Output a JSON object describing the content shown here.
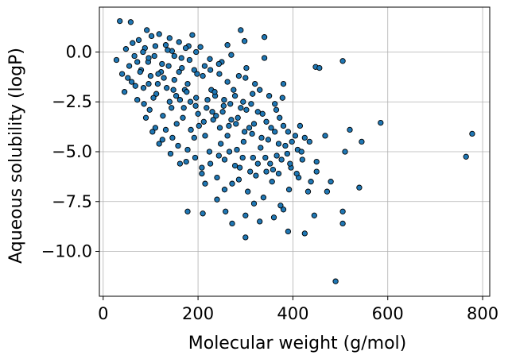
{
  "chart_data": {
    "type": "scatter",
    "title": "",
    "xlabel": "Molecular weight (g/mol)",
    "ylabel": "Aqueous solubility (logP)",
    "xlim": [
      -8,
      815
    ],
    "ylim": [
      -12.25,
      2.25
    ],
    "xticks": [
      0,
      200,
      400,
      600,
      800
    ],
    "yticks": [
      0.0,
      -2.5,
      -5.0,
      -7.5,
      -10.0
    ],
    "xtick_labels": [
      "0",
      "200",
      "400",
      "600",
      "800"
    ],
    "ytick_labels": [
      "0.0",
      "−2.5",
      "−5.0",
      "−7.5",
      "−10.0"
    ],
    "grid": true,
    "marker_color": "#1f77b4",
    "marker_edge_color": "#000000",
    "points": [
      [
        35,
        1.55
      ],
      [
        58,
        1.5
      ],
      [
        92,
        1.1
      ],
      [
        290,
        1.1
      ],
      [
        298,
        0.55
      ],
      [
        340,
        0.75
      ],
      [
        262,
        0.35
      ],
      [
        48,
        0.15
      ],
      [
        62,
        0.45
      ],
      [
        75,
        0.6
      ],
      [
        88,
        0.2
      ],
      [
        102,
        0.8
      ],
      [
        118,
        0.9
      ],
      [
        132,
        0.35
      ],
      [
        145,
        0.05
      ],
      [
        160,
        0.5
      ],
      [
        180,
        0.3
      ],
      [
        188,
        0.85
      ],
      [
        205,
        0.25
      ],
      [
        225,
        -0.35
      ],
      [
        250,
        -0.5
      ],
      [
        270,
        -0.15
      ],
      [
        340,
        -0.3
      ],
      [
        28,
        -0.4
      ],
      [
        40,
        -1.1
      ],
      [
        55,
        -0.7
      ],
      [
        66,
        -0.2
      ],
      [
        80,
        -0.9
      ],
      [
        95,
        -0.5
      ],
      [
        108,
        -0.2
      ],
      [
        122,
        -1.0
      ],
      [
        138,
        -0.7
      ],
      [
        150,
        -1.4
      ],
      [
        165,
        -0.3
      ],
      [
        178,
        -1.6
      ],
      [
        192,
        -0.9
      ],
      [
        210,
        -1.2
      ],
      [
        228,
        -1.9
      ],
      [
        245,
        -1.1
      ],
      [
        262,
        -1.5
      ],
      [
        278,
        -2.2
      ],
      [
        300,
        -1.3
      ],
      [
        312,
        -2.6
      ],
      [
        330,
        -1.9
      ],
      [
        350,
        -2.2
      ],
      [
        365,
        -2.9
      ],
      [
        380,
        -1.6
      ],
      [
        45,
        -2.0
      ],
      [
        60,
        -1.5
      ],
      [
        72,
        -2.4
      ],
      [
        85,
        -1.8
      ],
      [
        98,
        -2.9
      ],
      [
        112,
        -2.1
      ],
      [
        126,
        -3.2
      ],
      [
        140,
        -2.5
      ],
      [
        155,
        -3.6
      ],
      [
        170,
        -2.8
      ],
      [
        185,
        -3.9
      ],
      [
        200,
        -3.1
      ],
      [
        215,
        -4.2
      ],
      [
        232,
        -3.4
      ],
      [
        248,
        -4.6
      ],
      [
        265,
        -3.7
      ],
      [
        282,
        -4.9
      ],
      [
        298,
        -4.0
      ],
      [
        316,
        -5.3
      ],
      [
        334,
        -4.3
      ],
      [
        352,
        -5.6
      ],
      [
        370,
        -4.6
      ],
      [
        388,
        -5.1
      ],
      [
        405,
        -4.2
      ],
      [
        420,
        -5.4
      ],
      [
        435,
        -4.5
      ],
      [
        450,
        -6.0
      ],
      [
        110,
        -3.8
      ],
      [
        125,
        -4.4
      ],
      [
        142,
        -5.1
      ],
      [
        158,
        -4.7
      ],
      [
        175,
        -5.5
      ],
      [
        192,
        -4.3
      ],
      [
        208,
        -5.8
      ],
      [
        224,
        -5.0
      ],
      [
        240,
        -6.3
      ],
      [
        256,
        -5.4
      ],
      [
        272,
        -6.6
      ],
      [
        288,
        -5.8
      ],
      [
        305,
        -7.0
      ],
      [
        322,
        -6.2
      ],
      [
        338,
        -7.3
      ],
      [
        356,
        -6.5
      ],
      [
        374,
        -7.7
      ],
      [
        392,
        -6.9
      ],
      [
        215,
        -6.6
      ],
      [
        240,
        -7.4
      ],
      [
        258,
        -8.0
      ],
      [
        272,
        -8.6
      ],
      [
        300,
        -8.2
      ],
      [
        330,
        -8.5
      ],
      [
        360,
        -8.3
      ],
      [
        380,
        -7.9
      ],
      [
        425,
        -9.1
      ],
      [
        300,
        -9.3
      ],
      [
        178,
        -8.0
      ],
      [
        210,
        -8.1
      ],
      [
        445,
        -8.2
      ],
      [
        505,
        -8.0
      ],
      [
        505,
        -8.6
      ],
      [
        390,
        -9.0
      ],
      [
        432,
        -7.0
      ],
      [
        472,
        -7.0
      ],
      [
        480,
        -6.5
      ],
      [
        540,
        -6.8
      ],
      [
        450,
        -5.5
      ],
      [
        510,
        -5.0
      ],
      [
        520,
        -3.9
      ],
      [
        545,
        -4.5
      ],
      [
        585,
        -3.55
      ],
      [
        765,
        -5.25
      ],
      [
        778,
        -4.1
      ],
      [
        448,
        -0.75
      ],
      [
        456,
        -0.8
      ],
      [
        505,
        -0.45
      ],
      [
        490,
        -11.5
      ],
      [
        415,
        -3.7
      ],
      [
        425,
        -4.3
      ],
      [
        468,
        -4.2
      ],
      [
        410,
        -4.9
      ],
      [
        160,
        -1.0
      ],
      [
        172,
        -1.9
      ],
      [
        196,
        -2.3
      ],
      [
        218,
        -2.8
      ],
      [
        236,
        -2.2
      ],
      [
        252,
        -3.0
      ],
      [
        268,
        -2.6
      ],
      [
        284,
        -3.3
      ],
      [
        302,
        -2.9
      ],
      [
        318,
        -3.6
      ],
      [
        336,
        -3.1
      ],
      [
        354,
        -3.8
      ],
      [
        372,
        -3.3
      ],
      [
        390,
        -4.0
      ],
      [
        100,
        -1.2
      ],
      [
        115,
        -1.6
      ],
      [
        128,
        -1.3
      ],
      [
        148,
        -1.9
      ],
      [
        162,
        -2.4
      ],
      [
        176,
        -2.0
      ],
      [
        195,
        -2.7
      ],
      [
        212,
        -3.5
      ],
      [
        230,
        -3.0
      ],
      [
        246,
        -3.8
      ],
      [
        262,
        -4.2
      ],
      [
        280,
        -3.6
      ],
      [
        296,
        -4.5
      ],
      [
        314,
        -4.1
      ],
      [
        332,
        -4.8
      ],
      [
        348,
        -4.4
      ],
      [
        366,
        -5.2
      ],
      [
        384,
        -4.7
      ],
      [
        72,
        -0.5
      ],
      [
        84,
        0.0
      ],
      [
        96,
        -0.3
      ],
      [
        110,
        0.3
      ],
      [
        124,
        -0.6
      ],
      [
        136,
        0.1
      ],
      [
        150,
        -0.2
      ],
      [
        166,
        -0.8
      ],
      [
        182,
        -0.4
      ],
      [
        198,
        -1.1
      ],
      [
        214,
        -0.7
      ],
      [
        90,
        -3.3
      ],
      [
        104,
        -4.0
      ],
      [
        118,
        -4.6
      ],
      [
        132,
        -3.9
      ],
      [
        146,
        -4.3
      ],
      [
        162,
        -5.6
      ],
      [
        178,
        -4.9
      ],
      [
        194,
        -5.3
      ],
      [
        256,
        -6.9
      ],
      [
        286,
        -6.4
      ],
      [
        318,
        -7.6
      ],
      [
        344,
        -6.0
      ],
      [
        370,
        -6.1
      ],
      [
        396,
        -5.8
      ],
      [
        412,
        -6.3
      ],
      [
        438,
        -6.5
      ],
      [
        235,
        -2.0
      ],
      [
        255,
        -2.4
      ],
      [
        275,
        -1.9
      ],
      [
        295,
        -2.5
      ],
      [
        315,
        -2.1
      ],
      [
        52,
        -1.3
      ],
      [
        68,
        -1.7
      ],
      [
        78,
        -1.0
      ],
      [
        86,
        -2.6
      ],
      [
        96,
        -1.6
      ],
      [
        106,
        -2.3
      ],
      [
        116,
        -1.1
      ],
      [
        134,
        -1.8
      ],
      [
        144,
        -2.8
      ],
      [
        154,
        -2.2
      ],
      [
        168,
        -3.3
      ],
      [
        184,
        -2.5
      ],
      [
        202,
        -3.7
      ],
      [
        220,
        -2.4
      ],
      [
        238,
        -3.2
      ],
      [
        254,
        -2.7
      ],
      [
        270,
        -3.4
      ],
      [
        290,
        -2.8
      ],
      [
        308,
        -3.8
      ],
      [
        326,
        -3.0
      ],
      [
        344,
        -3.5
      ],
      [
        362,
        -4.0
      ],
      [
        380,
        -3.7
      ],
      [
        398,
        -4.5
      ],
      [
        208,
        -6.1
      ],
      [
        226,
        -5.6
      ],
      [
        244,
        -5.2
      ],
      [
        266,
        -5.0
      ],
      [
        278,
        -5.7
      ],
      [
        294,
        -5.3
      ],
      [
        310,
        -6.0
      ],
      [
        326,
        -5.6
      ],
      [
        342,
        -5.3
      ],
      [
        358,
        -5.9
      ],
      [
        376,
        -5.4
      ],
      [
        394,
        -5.6
      ],
      [
        408,
        -6.1
      ],
      [
        418,
        -5.0
      ],
      [
        362,
        -2.6
      ],
      [
        378,
        -2.3
      ],
      [
        320,
        -1.6
      ],
      [
        286,
        -1.2
      ],
      [
        302,
        -0.8
      ],
      [
        244,
        -0.6
      ],
      [
        226,
        -0.9
      ],
      [
        196,
        0.0
      ],
      [
        174,
        0.2
      ],
      [
        140,
        0.7
      ]
    ]
  }
}
